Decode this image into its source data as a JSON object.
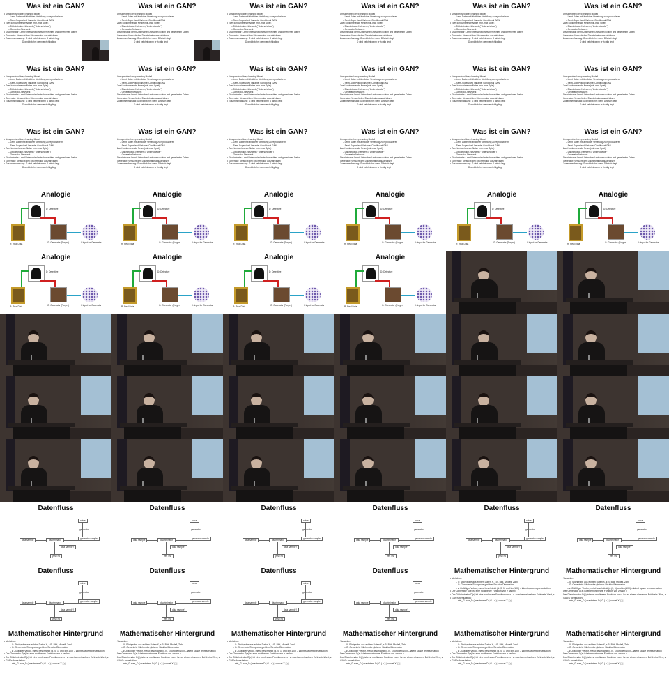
{
  "slides": {
    "gan": {
      "title": "Was ist ein GAN?",
      "lines": [
        {
          "t": "Unsupervised deep learning Modell",
          "lvl": 1
        },
        {
          "t": "Lernt Daten mit ähnlicher Verteilung zu reproduzieren",
          "lvl": 2
        },
        {
          "t": "Semi-Supervised Variante: Conditional GAN",
          "lvl": 2
        },
        {
          "t": "Zwei konkurrierende Netze (min-max Spiel)",
          "lvl": 1
        },
        {
          "t": "Diskriminator-Netzwerk (\"Unterscheider\")",
          "lvl": 2
        },
        {
          "t": "Generator-Netzwerk",
          "lvl": 2
        },
        {
          "t": "Discriminator: Lernt Unterschied zwischen echten und generierten Daten",
          "lvl": 1
        },
        {
          "t": "Generator: Versucht den Discriminator auszutricksen",
          "lvl": 1
        },
        {
          "t": "Zusammenfassung: G wird belohnt wenn D falsch liegt",
          "lvl": 1
        },
        {
          "t": "D wird belohnt wenn er richtig liegt",
          "lvl": 3
        }
      ]
    },
    "analogie": {
      "title": "Analogie",
      "detective": "D: Detective",
      "real": "R: Real Data",
      "forger": "G: Generator (Forger)",
      "input": "I: Input for Generator"
    },
    "datenfluss": {
      "title": "Datenfluss",
      "noise": "noise",
      "generator": "generator",
      "data_sample": "data sample",
      "discriminator": "discriminator",
      "generator_sample": "generator sample",
      "data_sample_q": "data sample?",
      "yes_no": "yes / no"
    },
    "math": {
      "title": "Mathematischer Hintergrund",
      "lines": [
        {
          "t": "Variablen:",
          "lvl": 1
        },
        {
          "t": "X: Stichprobe aus echten Daten X, z.B. Bild, Modell, Zahl",
          "lvl": 2
        },
        {
          "t": "G: Generierte Stichprobe gleicher Struktur/Dimension",
          "lvl": 2
        },
        {
          "t": "z: Zufälliger Vektor, meist beschränkt (d.(0, 1) und len(100) – latent space representation",
          "lvl": 2
        },
        {
          "t": "Der Generator G(z) ist eine nonlineare Funktion von z nach x",
          "lvl": 1
        },
        {
          "t": "Der Diskriminator D(x) ist eine nonlineare Funktion von x / z. zu einem einzelnen Echtheits-Wert, z.B. [0..1], [-1..1] oder [-∞, ∞]",
          "lvl": 1
        },
        {
          "t": "GAN's formulation:",
          "lvl": 1
        },
        {
          "t": "min_G max_D ( maximiere D | G ( z ) | concat X | ) |",
          "lvl": 2
        }
      ]
    }
  },
  "sequence": [
    "gan",
    "gan",
    "gan",
    "gan",
    "gan",
    "gan",
    "gan",
    "gan",
    "gan",
    "gan",
    "gan",
    "gan",
    "gan",
    "gan",
    "gan",
    "gan",
    "gan",
    "gan",
    "analogie",
    "analogie",
    "analogie",
    "analogie",
    "analogie",
    "analogie",
    "analogie",
    "analogie",
    "analogie",
    "analogie",
    "video",
    "video",
    "video",
    "video",
    "video",
    "video",
    "video",
    "video",
    "video",
    "video",
    "video",
    "video",
    "video",
    "video",
    "video",
    "video",
    "video",
    "video",
    "video",
    "video",
    "datenfluss",
    "datenfluss",
    "datenfluss",
    "datenfluss",
    "datenfluss",
    "datenfluss",
    "datenfluss",
    "datenfluss",
    "datenfluss",
    "datenfluss",
    "math",
    "math",
    "math",
    "math",
    "math",
    "math",
    "math",
    "math"
  ]
}
